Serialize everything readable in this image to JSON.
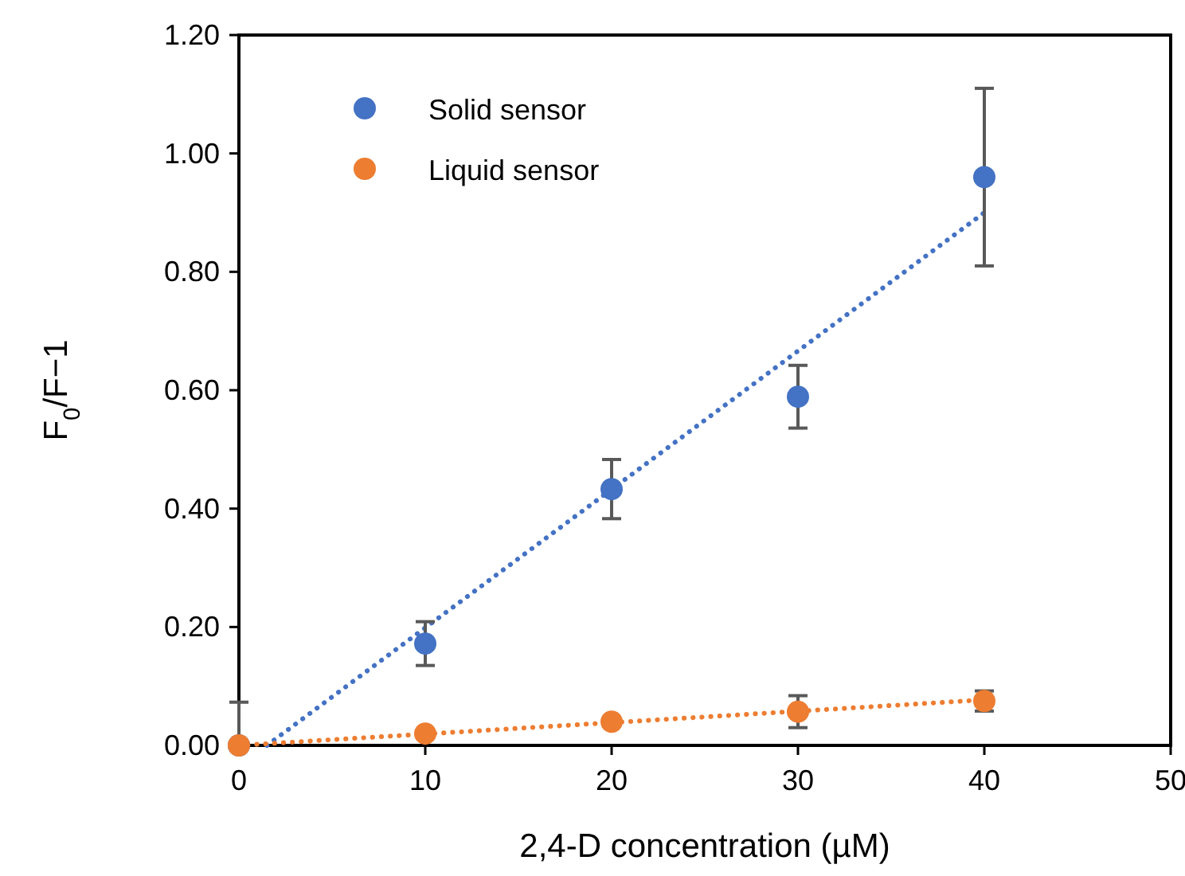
{
  "chart_data": {
    "type": "scatter",
    "xlabel": "2,4-D concentration (µM)",
    "ylabel": "F$_{0}$/F−1",
    "x": [
      0,
      10,
      20,
      30,
      40
    ],
    "series": [
      {
        "name": "Solid sensor",
        "color": "#4472c4",
        "values": [
          0,
          0.172,
          0.433,
          0.589,
          0.96
        ],
        "errors": [
          0.073,
          0.037,
          0.05,
          0.053,
          0.15
        ]
      },
      {
        "name": "Liquid sensor",
        "color": "#ed7d31",
        "values": [
          0,
          0.02,
          0.04,
          0.057,
          0.075
        ],
        "errors": [
          null,
          null,
          null,
          0.027,
          0.017
        ]
      },
      {
        "type": "line",
        "color": "#4472c4",
        "line_style": "dotted",
        "marker": "none",
        "x": [
          1.5,
          40
        ],
        "values": [
          0,
          0.9
        ]
      },
      {
        "type": "line",
        "color": "#ed7d31",
        "line_style": "dotted",
        "marker": "none",
        "x": [
          0,
          40
        ],
        "values": [
          0,
          0.077
        ]
      }
    ],
    "xlim": [
      0,
      50
    ],
    "xticks": [
      0,
      10,
      20,
      30,
      40,
      50
    ],
    "ylim": [
      0,
      1.2
    ],
    "yticks": [
      {
        "value": 0,
        "label": "0.00"
      },
      {
        "value": 0.2,
        "label": "0.20"
      },
      {
        "value": 0.4,
        "label": "0.40"
      },
      {
        "value": 0.6,
        "label": "0.60"
      },
      {
        "value": 0.8,
        "label": "0.80"
      },
      {
        "value": 1,
        "label": "1.00"
      },
      {
        "value": 1.2,
        "label": "1.20"
      }
    ],
    "marker": "circle",
    "grid": false,
    "legend": "top left"
  }
}
